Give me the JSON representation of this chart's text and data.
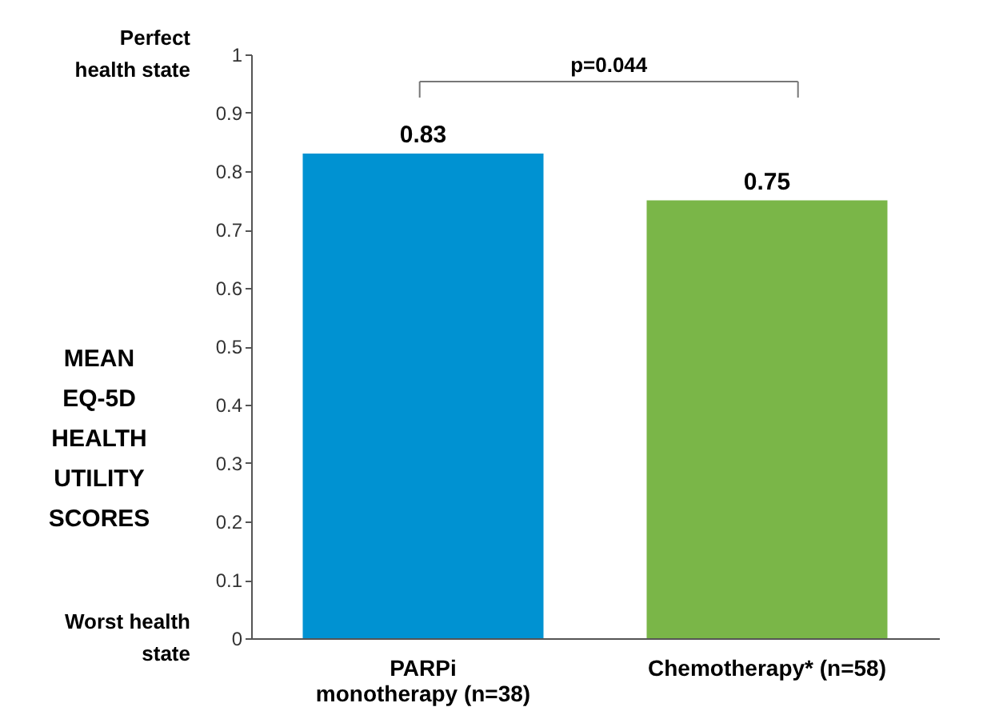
{
  "chart_data": {
    "type": "bar",
    "ylabel": "MEAN EQ-5D HEALTH UTILITY SCORES",
    "categories": [
      "PARPi monotherapy (n=38)",
      "Chemotherapy* (n=58)"
    ],
    "values": [
      0.83,
      0.75
    ],
    "colors": [
      "#0092d2",
      "#7ab648"
    ],
    "ylim": [
      0,
      1
    ],
    "yticks": [
      0,
      0.1,
      0.2,
      0.3,
      0.4,
      0.5,
      0.6,
      0.7,
      0.8,
      0.9,
      1
    ],
    "grid": false,
    "data_labels": true,
    "annotations": [
      "Perfect\nhealth state",
      "Worst health\nstate",
      "p=0.044"
    ]
  }
}
